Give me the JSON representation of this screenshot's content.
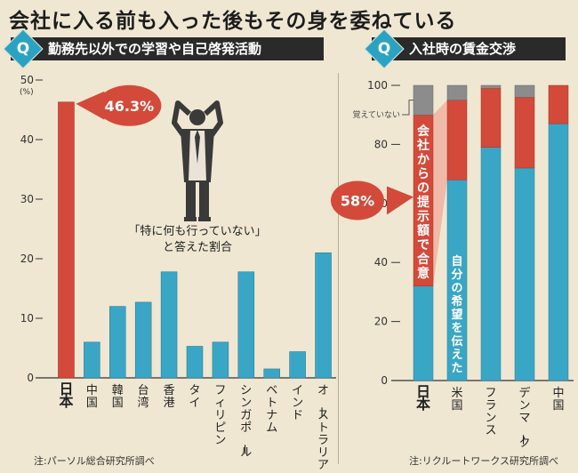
{
  "headline": "会社に入る前も入った後もその身を委ねている",
  "colors": {
    "teal": "#3aa6c6",
    "red": "#d34a3a",
    "gray": "#8c8c8c",
    "pink": "#f1b2a1",
    "dark": "#2a2a2a",
    "accent_q": "#2aa3c3"
  },
  "chart_data": [
    {
      "type": "bar",
      "q_mark": "Q",
      "title": "勤務先以外での学習や自己啓発活動",
      "ylabel": "(%)",
      "ylim": [
        0,
        50
      ],
      "yticks": [
        "0",
        "10",
        "20",
        "30",
        "40",
        "50"
      ],
      "categories": [
        "日本",
        "中国",
        "韓国",
        "台湾",
        "香港",
        "タイ",
        "フィリピン",
        "シンガポール",
        "ベトナム",
        "インド",
        "オーストラリア"
      ],
      "values": [
        46.3,
        6.0,
        12.0,
        12.7,
        17.8,
        5.3,
        6.0,
        17.8,
        1.5,
        4.4,
        21.0
      ],
      "highlight_callout": "46.3%",
      "annotation": "「特に何も行っていない」と答えた割合",
      "annotation_lines": [
        "「特に何も行っていない」",
        "と答えた割合"
      ],
      "figure_icon": "stressed-businessman-icon",
      "source": "注:パーソル総合研究所調べ"
    },
    {
      "type": "bar",
      "stacked": true,
      "q_mark": "Q",
      "title": "入社時の賃金交渉",
      "ylim": [
        0,
        100
      ],
      "yticks": [
        "0",
        "20",
        "40",
        "60",
        "80",
        "100"
      ],
      "categories": [
        "日本",
        "米国",
        "フランス",
        "デンマーク",
        "中国"
      ],
      "series": [
        {
          "name": "自分の希望を伝えた",
          "values": [
            32,
            68,
            79,
            72,
            87
          ]
        },
        {
          "name": "会社からの提示額で合意",
          "values": [
            58,
            27,
            20,
            24,
            13
          ]
        },
        {
          "name": "覚えていない",
          "values": [
            10,
            5,
            1,
            4,
            0
          ]
        }
      ],
      "highlight_callout": "58%",
      "source": "注:リクルートワークス研究所調べ"
    }
  ]
}
